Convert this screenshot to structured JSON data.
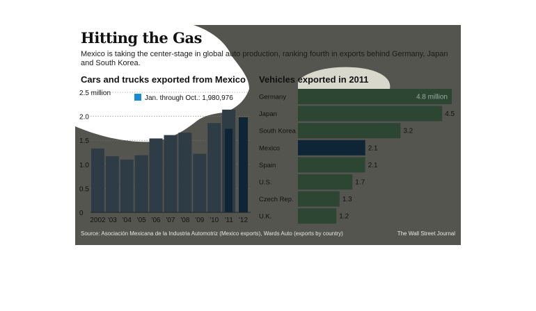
{
  "title": "Hitting the Gas",
  "subtitle": "Mexico is taking the center-stage in global auto production, ranking fourth in exports behind Germany, Japan and South Korea.",
  "source": "Source:  Asociación Mexicana de la Industria Automotriz (Mexico exports), Wards Auto (exports by country)",
  "credit": "The Wall Street Journal",
  "colors": {
    "background": "#55554f",
    "bar": "#2e3c46",
    "highlight": "#0d2535",
    "green_bar": "#2d4634",
    "legend": "#1a8ad4",
    "overlay": "#ffffff"
  },
  "chart_data": [
    {
      "type": "bar",
      "title": "Cars and trucks exported from Mexico",
      "categories": [
        "2002",
        "'03",
        "'04",
        "'05",
        "'06",
        "'07",
        "'08",
        "'09",
        "'10",
        "'11",
        "'12"
      ],
      "series": [
        {
          "values": [
            1.33,
            1.17,
            1.1,
            1.19,
            1.54,
            1.61,
            1.66,
            1.22,
            1.86,
            2.14,
            0
          ]
        },
        {
          "name": "Jan. through Oct.: 1,980,976",
          "values": [
            0,
            0,
            0,
            0,
            0,
            0,
            0,
            0,
            0,
            1.74,
            1.98
          ]
        }
      ],
      "yticks": [
        "0",
        "0.5",
        "1.0",
        "1.5",
        "2.0",
        "2.5 million"
      ],
      "ylim": [
        0,
        2.5
      ],
      "legend": "Jan. through Oct.: 1,980,976",
      "legend_position": "top"
    },
    {
      "type": "bar",
      "orientation": "horizontal",
      "title": "Vehicles exported in 2011",
      "categories": [
        "Germany",
        "Japan",
        "South Korea",
        "Mexico",
        "Spain",
        "U.S.",
        "Czech Rep.",
        "U.K."
      ],
      "values": [
        4.8,
        4.5,
        3.2,
        2.1,
        2.1,
        1.7,
        1.3,
        1.2
      ],
      "labels": [
        "4.8 million",
        "4.5",
        "3.2",
        "2.1",
        "2.1",
        "1.7",
        "1.3",
        "1.2"
      ],
      "highlight": "Mexico",
      "xlim": [
        0,
        4.8
      ]
    }
  ]
}
